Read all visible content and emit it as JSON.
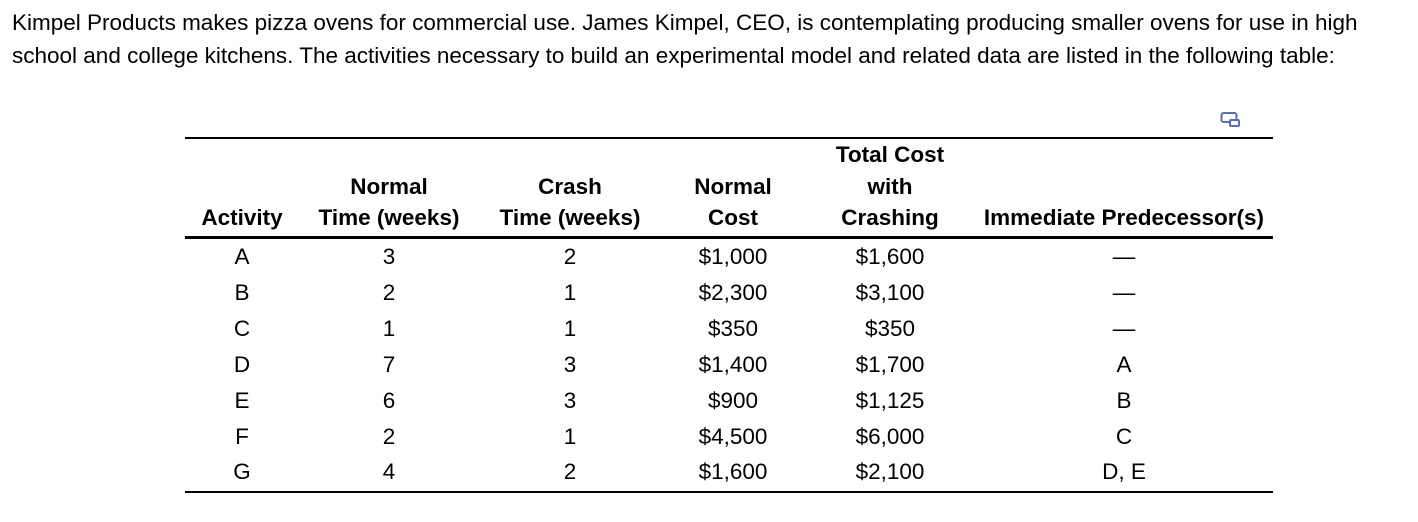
{
  "intro_text": "Kimpel Products makes pizza ovens for commercial use. James Kimpel, CEO, is contemplating producing smaller ovens for use in high school and college kitchens. The activities necessary to build an experimental model and related data are listed in the following table:",
  "icons": {
    "expand": "expand-table-icon"
  },
  "table": {
    "headers": {
      "activity": [
        "Activity"
      ],
      "normal_time": [
        "Normal",
        "Time (weeks)"
      ],
      "crash_time": [
        "Crash",
        "Time (weeks)"
      ],
      "normal_cost": [
        "Normal",
        "Cost"
      ],
      "total_cost": [
        "Total Cost",
        "with",
        "Crashing"
      ],
      "predecessors": [
        "Immediate Predecessor(s)"
      ]
    },
    "rows": [
      {
        "activity": "A",
        "normal_time": "3",
        "crash_time": "2",
        "normal_cost": "$1,000",
        "total_cost": "$1,600",
        "predecessors": "—"
      },
      {
        "activity": "B",
        "normal_time": "2",
        "crash_time": "1",
        "normal_cost": "$2,300",
        "total_cost": "$3,100",
        "predecessors": "—"
      },
      {
        "activity": "C",
        "normal_time": "1",
        "crash_time": "1",
        "normal_cost": "$350",
        "total_cost": "$350",
        "predecessors": "—"
      },
      {
        "activity": "D",
        "normal_time": "7",
        "crash_time": "3",
        "normal_cost": "$1,400",
        "total_cost": "$1,700",
        "predecessors": "A"
      },
      {
        "activity": "E",
        "normal_time": "6",
        "crash_time": "3",
        "normal_cost": "$900",
        "total_cost": "$1,125",
        "predecessors": "B"
      },
      {
        "activity": "F",
        "normal_time": "2",
        "crash_time": "1",
        "normal_cost": "$4,500",
        "total_cost": "$6,000",
        "predecessors": "C"
      },
      {
        "activity": "G",
        "normal_time": "4",
        "crash_time": "2",
        "normal_cost": "$1,600",
        "total_cost": "$2,100",
        "predecessors": "D, E"
      }
    ]
  }
}
